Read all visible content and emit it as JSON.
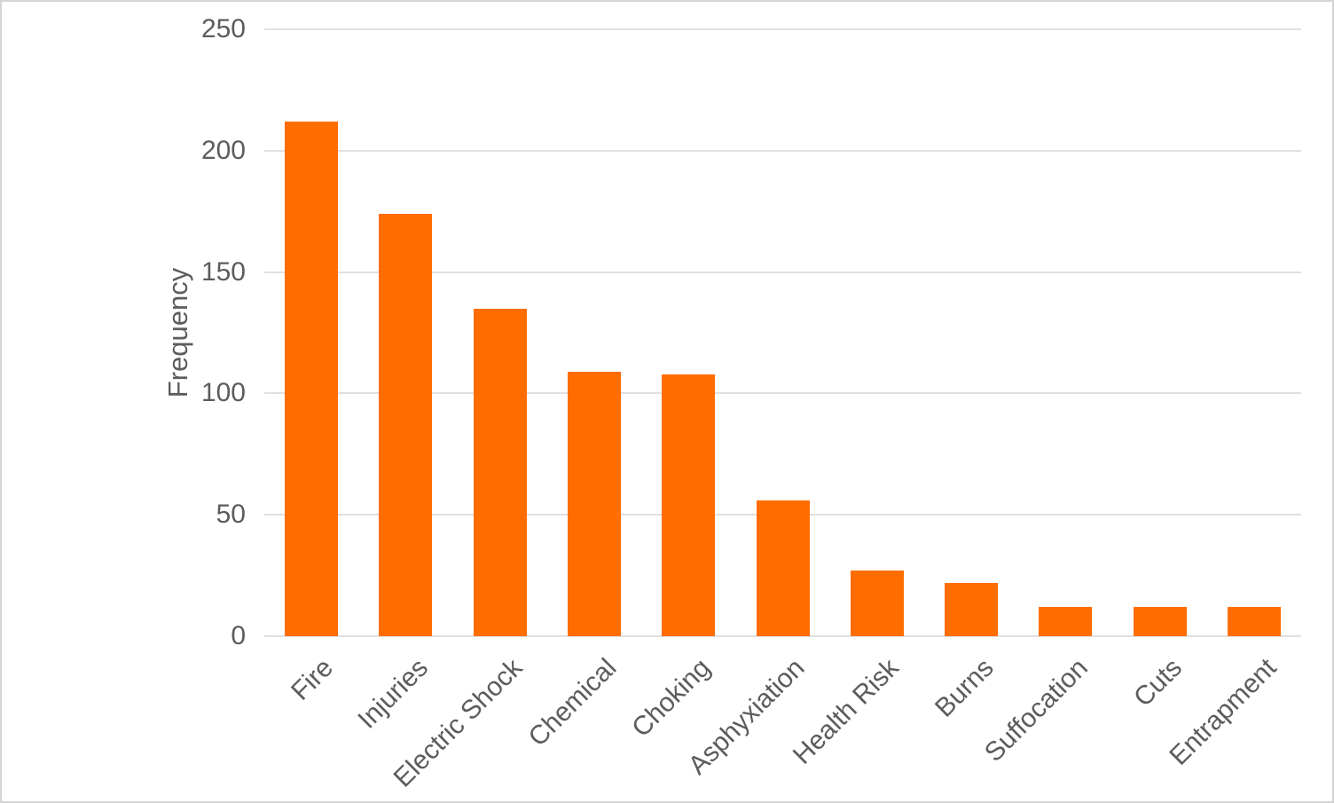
{
  "chart_data": {
    "type": "bar",
    "title": "",
    "xlabel": "",
    "ylabel": "Frequency",
    "categories": [
      "Fire",
      "Injuries",
      "Electric Shock",
      "Chemical",
      "Choking",
      "Asphyxiation",
      "Health Risk",
      "Burns",
      "Suffocation",
      "Cuts",
      "Entrapment"
    ],
    "values": [
      212,
      174,
      135,
      109,
      108,
      56,
      27,
      22,
      12,
      12,
      12
    ],
    "ylim": [
      0,
      250
    ],
    "yticks": [
      0,
      50,
      100,
      150,
      200,
      250
    ],
    "grid": "horizontal",
    "legend": "none",
    "x_label_rotation_deg": -45,
    "colors": {
      "bar": "#FF6D01",
      "gridline": "#E0E0E0",
      "text": "#5C5C5C",
      "canvas_border": "#D4D4D4",
      "background": "#FFFFFF"
    }
  }
}
